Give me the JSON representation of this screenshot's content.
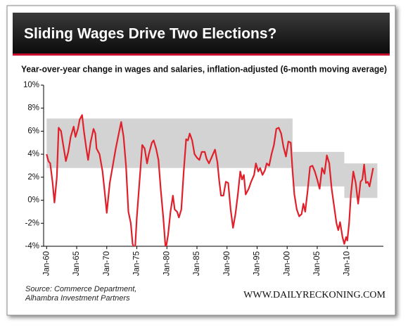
{
  "chart_data": {
    "type": "line",
    "title": "Sliding Wages Drive Two Elections?",
    "subtitle": "Year-over-year change in wages and salaries, inflation-adjusted (6-month moving average)",
    "source": [
      "Source:  Commerce Department,",
      "Alhambra Investment Partners"
    ],
    "website": "WWW.DAILYRECKONING.COM",
    "color": "#e0202a",
    "band_color": "#d3d3d3",
    "xlim": [
      1959.5,
      2016
    ],
    "ylim": [
      -4,
      10
    ],
    "xticks": [
      {
        "value": 1960,
        "label": "Jan-60"
      },
      {
        "value": 1965,
        "label": "Jan-65"
      },
      {
        "value": 1970,
        "label": "Jan-70"
      },
      {
        "value": 1975,
        "label": "Jan-75"
      },
      {
        "value": 1980,
        "label": "Jan-80"
      },
      {
        "value": 1985,
        "label": "Jan-85"
      },
      {
        "value": 1990,
        "label": "Jan-90"
      },
      {
        "value": 1995,
        "label": "Jan-95"
      },
      {
        "value": 2000,
        "label": "Jan-00"
      },
      {
        "value": 2005,
        "label": "Jan-05"
      },
      {
        "value": 2010,
        "label": "Jan-10"
      }
    ],
    "yticks": [
      {
        "value": -4,
        "label": "-4%"
      },
      {
        "value": -2,
        "label": "-2%"
      },
      {
        "value": 0,
        "label": "0%"
      },
      {
        "value": 2,
        "label": "2%"
      },
      {
        "value": 4,
        "label": "4%"
      },
      {
        "value": 6,
        "label": "6%"
      },
      {
        "value": 8,
        "label": "8%"
      },
      {
        "value": 10,
        "label": "10%"
      }
    ],
    "bands": [
      {
        "x0": 1960,
        "x1": 2000.9,
        "y0": 2.8,
        "y1": 7.1
      },
      {
        "x0": 2000.9,
        "x1": 2009.5,
        "y0": 1.2,
        "y1": 4.2
      },
      {
        "x0": 2009.5,
        "x1": 2015,
        "y0": 0.2,
        "y1": 3.2
      }
    ],
    "x": [
      1960,
      1960.3,
      1960.6,
      1961,
      1961.3,
      1961.7,
      1962,
      1962.4,
      1962.7,
      1963.2,
      1963.6,
      1964,
      1964.5,
      1964.8,
      1965.2,
      1965.5,
      1965.9,
      1966.2,
      1966.6,
      1966.9,
      1967.3,
      1967.8,
      1968.1,
      1968.3,
      1968.8,
      1969.3,
      1969.7,
      1970,
      1970.5,
      1971,
      1971.5,
      1972,
      1972.4,
      1972.8,
      1973.2,
      1973.6,
      1974,
      1974.3,
      1974.7,
      1975,
      1975.5,
      1975.9,
      1976.3,
      1976.7,
      1977,
      1977.5,
      1977.8,
      1978.2,
      1978.6,
      1979,
      1979.4,
      1979.8,
      1980.2,
      1980.6,
      1981,
      1981.3,
      1981.7,
      1982,
      1982.4,
      1982.8,
      1983.2,
      1983.5,
      1983.8,
      1984.2,
      1984.6,
      1985,
      1985.4,
      1985.8,
      1986.3,
      1986.6,
      1987,
      1987.5,
      1988,
      1988.4,
      1988.7,
      1989,
      1989.4,
      1989.8,
      1990.2,
      1990.6,
      1991,
      1991.4,
      1991.8,
      1992.2,
      1992.5,
      1992.8,
      1993.1,
      1993.6,
      1994,
      1994.5,
      1994.8,
      1995.2,
      1995.5,
      1995.9,
      1996.3,
      1996.6,
      1997,
      1997.4,
      1997.8,
      1998.2,
      1998.6,
      1999,
      1999.4,
      1999.8,
      2000.2,
      2000.6,
      2000.9,
      2001.2,
      2001.6,
      2002,
      2002.4,
      2002.7,
      2003,
      2003.4,
      2003.8,
      2004.2,
      2004.6,
      2005,
      2005.4,
      2005.8,
      2006.2,
      2006.6,
      2007,
      2007.4,
      2007.8,
      2008.2,
      2008.5,
      2008.8,
      2009.2,
      2009.5,
      2009.8,
      2010,
      2010.3,
      2010.6,
      2011,
      2011.4,
      2011.8,
      2012.2,
      2012.5,
      2012.8,
      2013.1,
      2013.4,
      2013.7,
      2014,
      2014.3
    ],
    "values": [
      4.0,
      3.4,
      3.2,
      1.5,
      -0.2,
      2.0,
      6.3,
      6.0,
      5.0,
      3.4,
      4.2,
      5.5,
      6.4,
      5.5,
      6.2,
      7.0,
      7.4,
      6.0,
      4.5,
      3.5,
      5.0,
      6.2,
      5.8,
      4.5,
      4.0,
      2.5,
      0.5,
      -1.1,
      1.5,
      3.0,
      4.5,
      5.8,
      6.8,
      5.5,
      3.0,
      -1.0,
      -2.0,
      -3.8,
      -4.3,
      -1.5,
      2.0,
      4.8,
      4.5,
      3.2,
      4.0,
      5.0,
      5.2,
      4.5,
      3.5,
      0.8,
      -1.5,
      -4.3,
      -3.0,
      -1.0,
      0.4,
      -0.8,
      -1.0,
      -1.5,
      -0.8,
      2.5,
      5.3,
      5.2,
      5.8,
      5.2,
      4.0,
      3.7,
      3.5,
      4.2,
      4.2,
      3.6,
      3.2,
      3.8,
      4.4,
      3.3,
      1.7,
      0.4,
      0.4,
      1.6,
      1.5,
      -0.8,
      -2.4,
      -1.2,
      0.5,
      2.5,
      1.8,
      2.2,
      0.5,
      1.0,
      1.6,
      2.2,
      3.2,
      2.5,
      2.8,
      2.2,
      2.6,
      3.2,
      3.0,
      4.0,
      4.8,
      6.2,
      6.3,
      5.8,
      4.6,
      3.8,
      5.1,
      5.0,
      2.5,
      0.5,
      -0.8,
      -1.4,
      -1.2,
      -0.3,
      -1.0,
      0.8,
      2.9,
      3.0,
      2.5,
      1.8,
      1.0,
      2.8,
      2.3,
      3.9,
      3.2,
      1.0,
      -0.5,
      -2.0,
      -2.6,
      -1.9,
      -3.2,
      -3.8,
      -3.2,
      -3.5,
      -2.0,
      0.5,
      2.5,
      1.5,
      -0.3,
      1.6,
      1.8,
      3.1,
      1.5,
      1.6,
      1.2,
      2.0,
      2.8
    ]
  }
}
